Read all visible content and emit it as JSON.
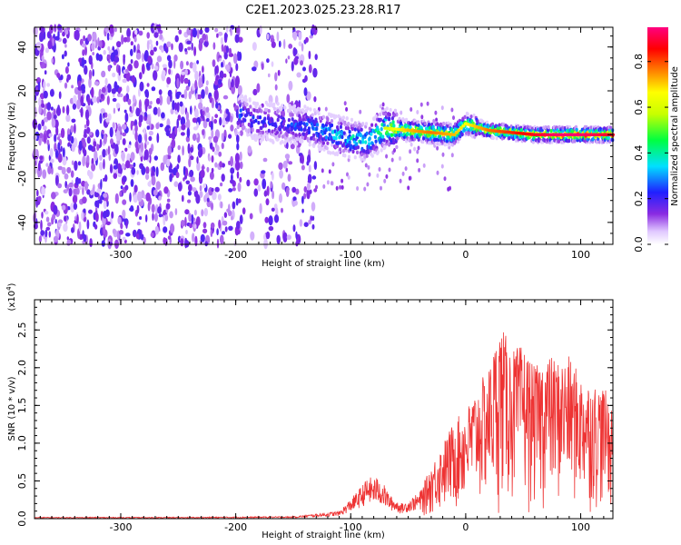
{
  "title": "C2E1.2023.025.23.28.R17",
  "chart_data": [
    {
      "type": "heatmap",
      "name": "spectrogram",
      "xlabel": "Height of straight line (km)",
      "ylabel": "Frequency (Hz)",
      "xlim": [
        -375,
        128
      ],
      "ylim": [
        -50,
        49
      ],
      "xticks": [
        -300,
        -200,
        -100,
        0,
        100
      ],
      "xtick_labels": [
        "-300",
        "-200",
        "-100",
        "0",
        "100"
      ],
      "yticks": [
        -40,
        -20,
        0,
        20,
        40
      ],
      "ytick_labels": [
        "-40",
        "-20",
        "0",
        "20",
        "40"
      ],
      "ridge": {
        "x": [
          -195,
          -180,
          -160,
          -140,
          -120,
          -100,
          -85,
          -70,
          -50,
          -30,
          -10,
          0,
          20,
          40,
          60,
          80,
          100,
          128
        ],
        "y": [
          9,
          6,
          5,
          4,
          1,
          -2,
          -3,
          3,
          2,
          1,
          0,
          5,
          2,
          1,
          0,
          0,
          0,
          0
        ],
        "amplitude": [
          0.3,
          0.25,
          0.25,
          0.3,
          0.35,
          0.4,
          0.4,
          0.55,
          0.65,
          0.7,
          0.65,
          0.6,
          0.7,
          0.75,
          0.8,
          0.85,
          0.85,
          0.8
        ]
      },
      "colorbar": {
        "label": "Normalized spectral amplitude",
        "range": [
          0.0,
          0.95
        ],
        "ticks": [
          0.0,
          0.2,
          0.4,
          0.6,
          0.8
        ],
        "tick_labels": [
          "0.0",
          "0.2",
          "0.4",
          "0.6",
          "0.8"
        ]
      }
    },
    {
      "type": "line",
      "name": "snr",
      "xlabel": "Height of straight line (km)",
      "ylabel": "SNR (10 * v/v)",
      "y_multiplier": "(x10",
      "y_multiplier_exp": "4",
      "y_multiplier_close": ")",
      "xlim": [
        -375,
        128
      ],
      "ylim": [
        0.0,
        2.9
      ],
      "xticks": [
        -300,
        -200,
        -100,
        0,
        100
      ],
      "xtick_labels": [
        "-300",
        "-200",
        "-100",
        "0",
        "100"
      ],
      "yticks": [
        0.0,
        0.5,
        1.0,
        1.5,
        2.0,
        2.5
      ],
      "ytick_labels": [
        "0.0",
        "0.5",
        "1.0",
        "1.5",
        "2.0",
        "2.5"
      ],
      "color": "#ee3333",
      "envelope": {
        "x": [
          -375,
          -250,
          -150,
          -110,
          -95,
          -85,
          -75,
          -65,
          -55,
          -40,
          -30,
          -20,
          -10,
          0,
          10,
          20,
          30,
          40,
          50,
          60,
          70,
          80,
          90,
          100,
          110,
          120,
          128
        ],
        "y": [
          0.02,
          0.02,
          0.03,
          0.1,
          0.35,
          0.55,
          0.55,
          0.3,
          0.2,
          0.35,
          0.7,
          1.0,
          1.3,
          1.45,
          1.75,
          2.0,
          2.6,
          2.25,
          2.3,
          2.0,
          2.2,
          2.1,
          2.15,
          1.9,
          1.8,
          1.75,
          1.5
        ]
      }
    }
  ]
}
